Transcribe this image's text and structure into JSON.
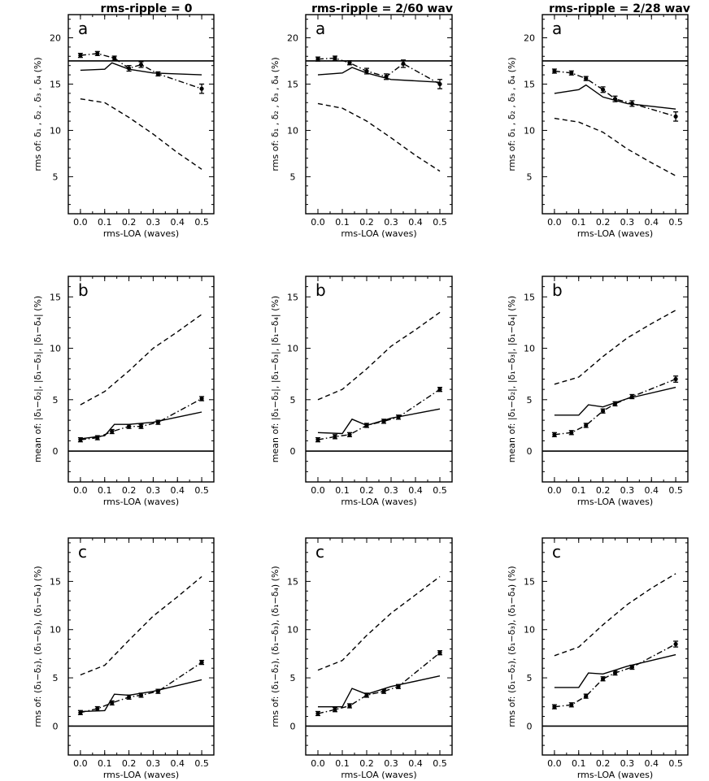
{
  "chart_data": [
    {
      "type": "line",
      "column": 0,
      "row": 0,
      "col_title": "rms-ripple = 0",
      "panel_label": "a",
      "ylabel": "rms of: δ₁ , δ₂ , δ₃ , δ₄ (%)",
      "xlabel": "rms-LOA (waves)",
      "x_ticks": [
        "0.0",
        "0.1",
        "0.2",
        "0.3",
        "0.4",
        "0.5"
      ],
      "y_ticks": [
        5,
        10,
        15,
        20
      ],
      "xlim": [
        -0.05,
        0.55
      ],
      "ylim": [
        1,
        22.5
      ],
      "reference_line": 17.5,
      "series": [
        {
          "name": "solid",
          "style": "solid",
          "x": [
            0.0,
            0.1,
            0.13,
            0.2,
            0.3,
            0.5
          ],
          "y": [
            16.5,
            16.6,
            17.3,
            16.6,
            16.2,
            16.0
          ]
        },
        {
          "name": "dashed",
          "style": "dashed",
          "x": [
            0.0,
            0.1,
            0.2,
            0.3,
            0.4,
            0.5
          ],
          "y": [
            13.4,
            13.0,
            11.4,
            9.6,
            7.6,
            5.8
          ]
        },
        {
          "name": "dash-dot",
          "style": "dashdot",
          "x": [
            0.0,
            0.07,
            0.14,
            0.2,
            0.25,
            0.32,
            0.5
          ],
          "y": [
            18.1,
            18.3,
            17.8,
            16.7,
            17.1,
            16.1,
            14.5
          ],
          "errors": [
            0.2,
            0.2,
            0.2,
            0.3,
            0.3,
            0.2,
            0.5
          ]
        }
      ]
    },
    {
      "type": "line",
      "column": 1,
      "row": 0,
      "col_title": "rms-ripple = 2/60 wav",
      "panel_label": "a",
      "ylabel": "rms of: δ₁ , δ₂ , δ₃ , δ₄ (%)",
      "xlabel": "rms-LOA (waves)",
      "x_ticks": [
        "0.0",
        "0.1",
        "0.2",
        "0.3",
        "0.4",
        "0.5"
      ],
      "y_ticks": [
        5,
        10,
        15,
        20
      ],
      "xlim": [
        -0.05,
        0.55
      ],
      "ylim": [
        1,
        22.5
      ],
      "reference_line": 17.5,
      "series": [
        {
          "name": "solid",
          "style": "solid",
          "x": [
            0.0,
            0.1,
            0.14,
            0.2,
            0.3,
            0.5
          ],
          "y": [
            16.0,
            16.2,
            16.8,
            16.2,
            15.5,
            15.2
          ]
        },
        {
          "name": "dashed",
          "style": "dashed",
          "x": [
            0.0,
            0.1,
            0.2,
            0.3,
            0.4,
            0.5
          ],
          "y": [
            12.9,
            12.4,
            11.0,
            9.2,
            7.3,
            5.6
          ]
        },
        {
          "name": "dash-dot",
          "style": "dashdot",
          "x": [
            0.0,
            0.07,
            0.13,
            0.2,
            0.28,
            0.35,
            0.5
          ],
          "y": [
            17.7,
            17.8,
            17.3,
            16.4,
            15.8,
            17.2,
            15.0
          ],
          "errors": [
            0.2,
            0.2,
            0.2,
            0.3,
            0.3,
            0.4,
            0.5
          ]
        }
      ]
    },
    {
      "type": "line",
      "column": 2,
      "row": 0,
      "col_title": "rms-ripple = 2/28 wav",
      "panel_label": "a",
      "ylabel": "rms of: δ₁ , δ₂ , δ₃ , δ₄ (%)",
      "xlabel": "rms-LOA (waves)",
      "x_ticks": [
        "0.0",
        "0.1",
        "0.2",
        "0.3",
        "0.4",
        "0.5"
      ],
      "y_ticks": [
        5,
        10,
        15,
        20
      ],
      "xlim": [
        -0.05,
        0.55
      ],
      "ylim": [
        1,
        22.5
      ],
      "reference_line": 17.5,
      "series": [
        {
          "name": "solid",
          "style": "solid",
          "x": [
            0.0,
            0.1,
            0.13,
            0.2,
            0.3,
            0.5
          ],
          "y": [
            14.0,
            14.4,
            14.9,
            13.6,
            12.9,
            12.3
          ]
        },
        {
          "name": "dashed",
          "style": "dashed",
          "x": [
            0.0,
            0.1,
            0.2,
            0.3,
            0.4,
            0.5
          ],
          "y": [
            11.3,
            10.9,
            9.8,
            8.0,
            6.5,
            5.1
          ]
        },
        {
          "name": "dash-dot",
          "style": "dashdot",
          "x": [
            0.0,
            0.07,
            0.13,
            0.2,
            0.25,
            0.32,
            0.5
          ],
          "y": [
            16.4,
            16.2,
            15.6,
            14.4,
            13.4,
            12.9,
            11.5
          ],
          "errors": [
            0.2,
            0.2,
            0.2,
            0.3,
            0.3,
            0.3,
            0.5
          ]
        }
      ]
    },
    {
      "type": "line",
      "column": 0,
      "row": 1,
      "panel_label": "b",
      "ylabel": "mean of: |δ₁−δ₂|, |δ₁−δ₃|, |δ₁−δ₄| (%)",
      "xlabel": "rms-LOA (waves)",
      "x_ticks": [
        "0.0",
        "0.1",
        "0.2",
        "0.3",
        "0.4",
        "0.5"
      ],
      "y_ticks": [
        0,
        5,
        10,
        15
      ],
      "xlim": [
        -0.05,
        0.55
      ],
      "ylim": [
        -3,
        17
      ],
      "reference_line": 0,
      "series": [
        {
          "name": "solid",
          "style": "solid",
          "x": [
            0.0,
            0.1,
            0.14,
            0.2,
            0.3,
            0.5
          ],
          "y": [
            1.2,
            1.5,
            2.6,
            2.6,
            2.8,
            3.8
          ]
        },
        {
          "name": "dashed",
          "style": "dashed",
          "x": [
            0.0,
            0.1,
            0.2,
            0.3,
            0.4,
            0.5
          ],
          "y": [
            4.5,
            5.8,
            7.8,
            10.0,
            11.6,
            13.3
          ]
        },
        {
          "name": "dash-dot",
          "style": "dashdot",
          "x": [
            0.0,
            0.07,
            0.13,
            0.2,
            0.25,
            0.32,
            0.5
          ],
          "y": [
            1.1,
            1.3,
            1.9,
            2.4,
            2.4,
            2.8,
            5.1
          ],
          "errors": [
            0.1,
            0.1,
            0.1,
            0.1,
            0.1,
            0.1,
            0.2
          ]
        }
      ]
    },
    {
      "type": "line",
      "column": 1,
      "row": 1,
      "panel_label": "b",
      "ylabel": "mean of: |δ₁−δ₂|, |δ₁−δ₃|, |δ₁−δ₄| (%)",
      "xlabel": "rms-LOA (waves)",
      "x_ticks": [
        "0.0",
        "0.1",
        "0.2",
        "0.3",
        "0.4",
        "0.5"
      ],
      "y_ticks": [
        0,
        5,
        10,
        15
      ],
      "xlim": [
        -0.05,
        0.55
      ],
      "ylim": [
        -3,
        17
      ],
      "reference_line": 0,
      "series": [
        {
          "name": "solid",
          "style": "solid",
          "x": [
            0.0,
            0.1,
            0.14,
            0.2,
            0.3,
            0.5
          ],
          "y": [
            1.8,
            1.7,
            3.1,
            2.5,
            3.2,
            4.1
          ]
        },
        {
          "name": "dashed",
          "style": "dashed",
          "x": [
            0.0,
            0.1,
            0.2,
            0.3,
            0.4,
            0.5
          ],
          "y": [
            5.0,
            6.0,
            8.0,
            10.2,
            11.8,
            13.5
          ]
        },
        {
          "name": "dash-dot",
          "style": "dashdot",
          "x": [
            0.0,
            0.07,
            0.13,
            0.2,
            0.27,
            0.33,
            0.5
          ],
          "y": [
            1.1,
            1.4,
            1.6,
            2.5,
            2.9,
            3.3,
            6.0
          ],
          "errors": [
            0.1,
            0.1,
            0.1,
            0.1,
            0.1,
            0.1,
            0.2
          ]
        }
      ]
    },
    {
      "type": "line",
      "column": 2,
      "row": 1,
      "panel_label": "b",
      "ylabel": "mean of: |δ₁−δ₂|, |δ₁−δ₃|, |δ₁−δ₄| (%)",
      "xlabel": "rms-LOA (waves)",
      "x_ticks": [
        "0.0",
        "0.1",
        "0.2",
        "0.3",
        "0.4",
        "0.5"
      ],
      "y_ticks": [
        0,
        5,
        10,
        15
      ],
      "xlim": [
        -0.05,
        0.55
      ],
      "ylim": [
        -3,
        17
      ],
      "reference_line": 0,
      "series": [
        {
          "name": "solid",
          "style": "solid",
          "x": [
            0.0,
            0.1,
            0.14,
            0.2,
            0.3,
            0.5
          ],
          "y": [
            3.5,
            3.5,
            4.5,
            4.3,
            5.1,
            6.2
          ]
        },
        {
          "name": "dashed",
          "style": "dashed",
          "x": [
            0.0,
            0.1,
            0.2,
            0.3,
            0.4,
            0.5
          ],
          "y": [
            6.5,
            7.2,
            9.2,
            11.0,
            12.4,
            13.7
          ]
        },
        {
          "name": "dash-dot",
          "style": "dashdot",
          "x": [
            0.0,
            0.07,
            0.13,
            0.2,
            0.25,
            0.32,
            0.5
          ],
          "y": [
            1.6,
            1.8,
            2.5,
            3.9,
            4.6,
            5.3,
            7.0
          ],
          "errors": [
            0.1,
            0.1,
            0.1,
            0.2,
            0.2,
            0.2,
            0.3
          ]
        }
      ]
    },
    {
      "type": "line",
      "column": 0,
      "row": 2,
      "panel_label": "c",
      "ylabel": "rms of: (δ₁−δ₂), (δ₁−δ₃), (δ₁−δ₄) (%)",
      "xlabel": "rms-LOA (waves)",
      "x_ticks": [
        "0.0",
        "0.1",
        "0.2",
        "0.3",
        "0.4",
        "0.5"
      ],
      "y_ticks": [
        0,
        5,
        10,
        15
      ],
      "xlim": [
        -0.05,
        0.55
      ],
      "ylim": [
        -3,
        19.5
      ],
      "reference_line": 0,
      "series": [
        {
          "name": "solid",
          "style": "solid",
          "x": [
            0.0,
            0.1,
            0.14,
            0.2,
            0.3,
            0.5
          ],
          "y": [
            1.5,
            1.6,
            3.3,
            3.2,
            3.6,
            4.8
          ]
        },
        {
          "name": "dashed",
          "style": "dashed",
          "x": [
            0.0,
            0.1,
            0.2,
            0.3,
            0.4,
            0.5
          ],
          "y": [
            5.3,
            6.3,
            8.9,
            11.4,
            13.4,
            15.5
          ]
        },
        {
          "name": "dash-dot",
          "style": "dashdot",
          "x": [
            0.0,
            0.07,
            0.13,
            0.2,
            0.25,
            0.32,
            0.5
          ],
          "y": [
            1.4,
            1.8,
            2.4,
            3.0,
            3.2,
            3.6,
            6.6
          ],
          "errors": [
            0.1,
            0.1,
            0.1,
            0.1,
            0.1,
            0.1,
            0.2
          ]
        }
      ]
    },
    {
      "type": "line",
      "column": 1,
      "row": 2,
      "panel_label": "c",
      "ylabel": "rms of: (δ₁−δ₂), (δ₁−δ₃), (δ₁−δ₄) (%)",
      "xlabel": "rms-LOA (waves)",
      "x_ticks": [
        "0.0",
        "0.1",
        "0.2",
        "0.3",
        "0.4",
        "0.5"
      ],
      "y_ticks": [
        0,
        5,
        10,
        15
      ],
      "xlim": [
        -0.05,
        0.55
      ],
      "ylim": [
        -3,
        19.5
      ],
      "reference_line": 0,
      "series": [
        {
          "name": "solid",
          "style": "solid",
          "x": [
            0.0,
            0.1,
            0.14,
            0.2,
            0.3,
            0.5
          ],
          "y": [
            2.0,
            2.0,
            3.9,
            3.3,
            4.1,
            5.2
          ]
        },
        {
          "name": "dashed",
          "style": "dashed",
          "x": [
            0.0,
            0.1,
            0.2,
            0.3,
            0.4,
            0.5
          ],
          "y": [
            5.8,
            6.8,
            9.4,
            11.7,
            13.6,
            15.5
          ]
        },
        {
          "name": "dash-dot",
          "style": "dashdot",
          "x": [
            0.0,
            0.07,
            0.13,
            0.2,
            0.27,
            0.33,
            0.5
          ],
          "y": [
            1.3,
            1.7,
            2.1,
            3.2,
            3.6,
            4.1,
            7.6
          ],
          "errors": [
            0.1,
            0.1,
            0.1,
            0.1,
            0.1,
            0.1,
            0.2
          ]
        }
      ]
    },
    {
      "type": "line",
      "column": 2,
      "row": 2,
      "panel_label": "c",
      "ylabel": "rms of: (δ₁−δ₂), (δ₁−δ₃), (δ₁−δ₄) (%)",
      "xlabel": "rms-LOA (waves)",
      "x_ticks": [
        "0.0",
        "0.1",
        "0.2",
        "0.3",
        "0.4",
        "0.5"
      ],
      "y_ticks": [
        0,
        5,
        10,
        15
      ],
      "xlim": [
        -0.05,
        0.55
      ],
      "ylim": [
        -3,
        19.5
      ],
      "reference_line": 0,
      "series": [
        {
          "name": "solid",
          "style": "solid",
          "x": [
            0.0,
            0.1,
            0.14,
            0.2,
            0.3,
            0.5
          ],
          "y": [
            4.0,
            4.0,
            5.5,
            5.4,
            6.2,
            7.4
          ]
        },
        {
          "name": "dashed",
          "style": "dashed",
          "x": [
            0.0,
            0.1,
            0.2,
            0.3,
            0.4,
            0.5
          ],
          "y": [
            7.3,
            8.2,
            10.5,
            12.6,
            14.3,
            15.8
          ]
        },
        {
          "name": "dash-dot",
          "style": "dashdot",
          "x": [
            0.0,
            0.07,
            0.13,
            0.2,
            0.25,
            0.32,
            0.5
          ],
          "y": [
            2.0,
            2.2,
            3.1,
            4.9,
            5.5,
            6.1,
            8.5
          ],
          "errors": [
            0.1,
            0.1,
            0.1,
            0.2,
            0.2,
            0.2,
            0.3
          ]
        }
      ]
    }
  ]
}
